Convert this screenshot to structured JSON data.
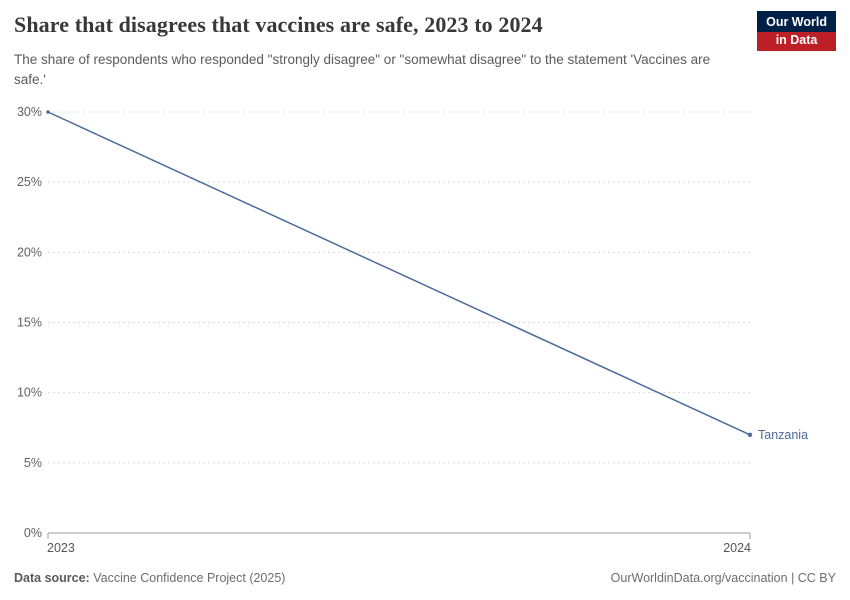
{
  "header": {
    "title": "Share that disagrees that vaccines are safe, 2023 to 2024",
    "subtitle": "The share of respondents who responded \"strongly disagree\" or \"somewhat disagree\" to the statement 'Vaccines are safe.'",
    "logo": {
      "line1": "Our World",
      "line2": "in Data",
      "bg_color": "#002147",
      "accent_color": "#bc2026"
    }
  },
  "chart_data": {
    "type": "line",
    "title": "Share that disagrees that vaccines are safe, 2023 to 2024",
    "x": [
      2023,
      2024
    ],
    "series": [
      {
        "name": "Tanzania",
        "values": [
          30,
          7
        ],
        "color": "#4C6A9C"
      }
    ],
    "ylim": [
      0,
      30
    ],
    "yticks": [
      0,
      5,
      10,
      15,
      20,
      25,
      30
    ],
    "ytick_suffix": "%",
    "xtick_labels": [
      "2023",
      "2024"
    ],
    "grid": "horizontal-dashed",
    "legend": "end-of-line-label",
    "colors": {
      "gridline": "#d9d9d9",
      "axis": "#9e9e9e",
      "tick_text": "#616161",
      "xtick_text": "#555555"
    }
  },
  "footer": {
    "source_label": "Data source:",
    "source_value": "Vaccine Confidence Project (2025)",
    "right": "OurWorldinData.org/vaccination | CC BY"
  }
}
